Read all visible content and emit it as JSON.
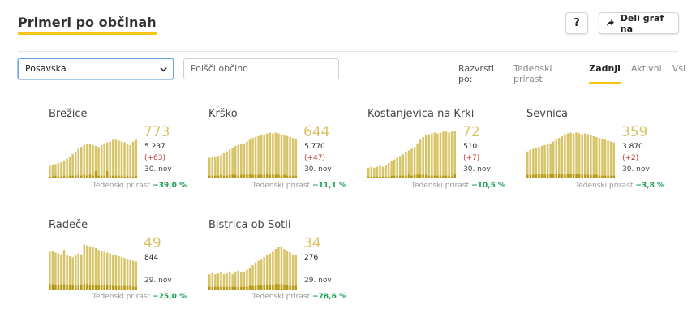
{
  "header": {
    "title": "Primeri po občinah",
    "help_label": "?",
    "share_label": "Deli graf na"
  },
  "filters": {
    "region_selected": "Posavska",
    "search_placeholder": "Poišči občino"
  },
  "sort": {
    "label": "Razvrsti po:",
    "options": [
      "Tedenski prirast",
      "Zadnji",
      "Aktivni",
      "Vsi"
    ],
    "active": "Zadnji"
  },
  "colors": {
    "bar": "#d8c468",
    "bar_dark": "#b89a12",
    "accent": "#f5c518",
    "positive": "#1e9e55",
    "negative_delta": "#c0392b"
  },
  "cards": [
    {
      "name": "Brežice",
      "big": "773",
      "total": "5.237",
      "delta": "(+63)",
      "date": "30. nov",
      "growth_label": "Tedenski prirast",
      "growth": "−39,0 %",
      "chart_data": {
        "type": "bar",
        "values": [
          14,
          15,
          16,
          17,
          18,
          20,
          22,
          24,
          27,
          30,
          33,
          35,
          37,
          38,
          38,
          37,
          36,
          35,
          37,
          39,
          40,
          41,
          43,
          43,
          42,
          41,
          40,
          38,
          37,
          41,
          43
        ],
        "dark": [
          2,
          2,
          3,
          2,
          2,
          3,
          2,
          3,
          3,
          3,
          4,
          3,
          4,
          3,
          4,
          3,
          8,
          3,
          3,
          3,
          8,
          3,
          3,
          3,
          3,
          3,
          2,
          3,
          2,
          2,
          3
        ]
      }
    },
    {
      "name": "Krško",
      "big": "644",
      "total": "5.770",
      "delta": "(+47)",
      "date": "30. nov",
      "growth_label": "Tedenski prirast",
      "growth": "−11,1 %",
      "chart_data": {
        "type": "bar",
        "values": [
          23,
          24,
          24,
          25,
          26,
          28,
          30,
          32,
          34,
          36,
          37,
          38,
          39,
          41,
          43,
          45,
          46,
          47,
          48,
          49,
          50,
          51,
          50,
          51,
          50,
          49,
          48,
          47,
          46,
          45,
          44
        ],
        "dark": [
          3,
          3,
          3,
          3,
          4,
          3,
          3,
          4,
          4,
          4,
          3,
          4,
          4,
          4,
          5,
          4,
          4,
          4,
          4,
          4,
          5,
          4,
          4,
          4,
          4,
          3,
          4,
          3,
          3,
          3,
          3
        ]
      }
    },
    {
      "name": "Kostanjevica na Krki",
      "big": "72",
      "total": "510",
      "delta": "(+7)",
      "date": "30. nov",
      "growth_label": "Tedenski prirast",
      "growth": "−10,5 %",
      "chart_data": {
        "type": "bar",
        "values": [
          12,
          13,
          12,
          13,
          14,
          13,
          15,
          17,
          19,
          21,
          23,
          25,
          27,
          29,
          31,
          33,
          35,
          39,
          43,
          46,
          48,
          49,
          50,
          51,
          50,
          51,
          52,
          52,
          51,
          52,
          53
        ],
        "dark": [
          2,
          2,
          2,
          2,
          2,
          2,
          2,
          2,
          3,
          3,
          3,
          3,
          3,
          3,
          4,
          3,
          4,
          4,
          4,
          4,
          4,
          3,
          3,
          3,
          3,
          3,
          3,
          3,
          3,
          2,
          5
        ]
      }
    },
    {
      "name": "Sevnica",
      "big": "359",
      "total": "3.870",
      "delta": "(+2)",
      "date": "30. nov",
      "growth_label": "Tedenski prirast",
      "growth": "−3,8 %",
      "chart_data": {
        "type": "bar",
        "values": [
          30,
          32,
          33,
          34,
          35,
          36,
          37,
          38,
          39,
          41,
          43,
          45,
          47,
          49,
          50,
          51,
          50,
          51,
          50,
          49,
          50,
          49,
          48,
          47,
          46,
          45,
          44,
          43,
          42,
          41,
          40
        ],
        "dark": [
          4,
          4,
          4,
          5,
          5,
          5,
          4,
          5,
          5,
          5,
          5,
          5,
          5,
          4,
          5,
          5,
          5,
          5,
          5,
          4,
          4,
          4,
          4,
          4,
          4,
          3,
          3,
          3,
          3,
          3,
          3
        ]
      }
    },
    {
      "name": "Radeče",
      "big": "49",
      "total": "844",
      "delta": "",
      "date": "29. nov",
      "growth_label": "Tedenski prirast",
      "growth": "−25,0 %",
      "chart_data": {
        "type": "bar",
        "values": [
          42,
          43,
          41,
          40,
          39,
          44,
          38,
          37,
          36,
          38,
          40,
          39,
          50,
          49,
          48,
          47,
          46,
          44,
          43,
          42,
          41,
          40,
          39,
          38,
          37,
          36,
          35,
          34,
          33,
          32,
          31
        ],
        "dark": [
          6,
          6,
          5,
          5,
          5,
          6,
          5,
          5,
          5,
          4,
          5,
          5,
          6,
          6,
          5,
          5,
          5,
          5,
          5,
          5,
          5,
          5,
          4,
          4,
          4,
          4,
          4,
          4,
          4,
          3,
          3
        ]
      }
    },
    {
      "name": "Bistrica ob Sotli",
      "big": "34",
      "total": "276",
      "delta": "",
      "date": "29. nov",
      "growth_label": "Tedenski prirast",
      "growth": "−78,6 %",
      "chart_data": {
        "type": "bar",
        "values": [
          17,
          18,
          17,
          18,
          19,
          17,
          18,
          19,
          17,
          20,
          21,
          19,
          20,
          22,
          24,
          27,
          30,
          32,
          34,
          36,
          38,
          40,
          42,
          45,
          47,
          48,
          45,
          43,
          41,
          39,
          38
        ],
        "dark": [
          3,
          3,
          3,
          3,
          3,
          3,
          3,
          3,
          3,
          3,
          3,
          3,
          3,
          3,
          4,
          4,
          4,
          5,
          5,
          5,
          5,
          5,
          5,
          6,
          6,
          6,
          5,
          5,
          4,
          4,
          4
        ]
      }
    }
  ]
}
